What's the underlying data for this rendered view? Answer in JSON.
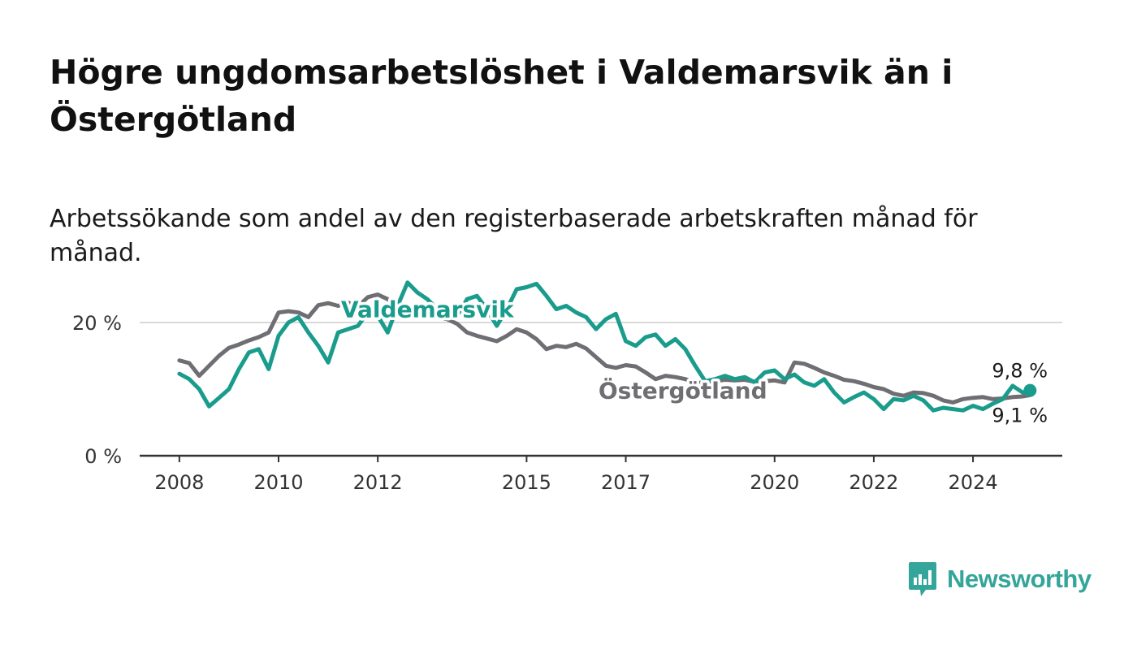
{
  "title": "Högre ungdomsarbetslöshet i Valdemarsvik än i Östergötland",
  "subtitle": "Arbetssökande som andel av den registerbaserade arbetskraften månad för månad.",
  "brand": {
    "name": "Newsworthy",
    "color": "#34a59a",
    "icon": "bar-chart-speech-bubble-icon"
  },
  "chart_data": {
    "type": "line",
    "x_range": [
      2007.2,
      2025.8
    ],
    "ylim": [
      0,
      30
    ],
    "y_ticks": [
      0,
      20
    ],
    "y_tick_labels": [
      "0 %",
      "20 %"
    ],
    "x_ticks": [
      2008,
      2010,
      2012,
      2015,
      2017,
      2020,
      2022,
      2024
    ],
    "x_tick_labels": [
      "2008",
      "2010",
      "2012",
      "2015",
      "2017",
      "2020",
      "2022",
      "2024"
    ],
    "grid": "horizontal at 20 %",
    "series": [
      {
        "name": "Östergötland",
        "color": "#6e6e73",
        "end_label": "9,1 %",
        "points": [
          [
            2008.0,
            14.3
          ],
          [
            2008.2,
            13.9
          ],
          [
            2008.4,
            12.0
          ],
          [
            2008.6,
            13.5
          ],
          [
            2008.8,
            15.0
          ],
          [
            2009.0,
            16.2
          ],
          [
            2009.2,
            16.7
          ],
          [
            2009.4,
            17.3
          ],
          [
            2009.6,
            17.8
          ],
          [
            2009.8,
            18.5
          ],
          [
            2010.0,
            21.5
          ],
          [
            2010.2,
            21.7
          ],
          [
            2010.4,
            21.5
          ],
          [
            2010.6,
            20.8
          ],
          [
            2010.8,
            22.6
          ],
          [
            2011.0,
            22.9
          ],
          [
            2011.2,
            22.5
          ],
          [
            2011.4,
            23.0
          ],
          [
            2011.6,
            22.4
          ],
          [
            2011.8,
            23.8
          ],
          [
            2012.0,
            24.2
          ],
          [
            2012.2,
            23.5
          ],
          [
            2012.4,
            22.2
          ],
          [
            2012.6,
            21.6
          ],
          [
            2012.8,
            22.0
          ],
          [
            2013.0,
            21.5
          ],
          [
            2013.2,
            20.8
          ],
          [
            2013.4,
            20.5
          ],
          [
            2013.6,
            19.8
          ],
          [
            2013.8,
            18.5
          ],
          [
            2014.0,
            18.0
          ],
          [
            2014.2,
            17.6
          ],
          [
            2014.4,
            17.2
          ],
          [
            2014.6,
            18.0
          ],
          [
            2014.8,
            19.0
          ],
          [
            2015.0,
            18.5
          ],
          [
            2015.2,
            17.5
          ],
          [
            2015.4,
            16.0
          ],
          [
            2015.6,
            16.5
          ],
          [
            2015.8,
            16.3
          ],
          [
            2016.0,
            16.8
          ],
          [
            2016.2,
            16.1
          ],
          [
            2016.4,
            14.8
          ],
          [
            2016.6,
            13.5
          ],
          [
            2016.8,
            13.2
          ],
          [
            2017.0,
            13.6
          ],
          [
            2017.2,
            13.4
          ],
          [
            2017.4,
            12.5
          ],
          [
            2017.6,
            11.5
          ],
          [
            2017.8,
            12.0
          ],
          [
            2018.0,
            11.8
          ],
          [
            2018.2,
            11.5
          ],
          [
            2018.4,
            11.0
          ],
          [
            2018.6,
            10.9
          ],
          [
            2018.8,
            11.2
          ],
          [
            2019.0,
            11.4
          ],
          [
            2019.2,
            11.3
          ],
          [
            2019.4,
            11.4
          ],
          [
            2019.6,
            11.1
          ],
          [
            2019.8,
            11.2
          ],
          [
            2020.0,
            11.3
          ],
          [
            2020.2,
            11.0
          ],
          [
            2020.4,
            14.0
          ],
          [
            2020.6,
            13.8
          ],
          [
            2020.8,
            13.2
          ],
          [
            2021.0,
            12.5
          ],
          [
            2021.2,
            12.0
          ],
          [
            2021.4,
            11.4
          ],
          [
            2021.6,
            11.2
          ],
          [
            2021.8,
            10.8
          ],
          [
            2022.0,
            10.3
          ],
          [
            2022.2,
            10.0
          ],
          [
            2022.4,
            9.3
          ],
          [
            2022.6,
            9.0
          ],
          [
            2022.8,
            9.5
          ],
          [
            2023.0,
            9.4
          ],
          [
            2023.2,
            9.0
          ],
          [
            2023.4,
            8.3
          ],
          [
            2023.6,
            8.0
          ],
          [
            2023.8,
            8.5
          ],
          [
            2024.0,
            8.7
          ],
          [
            2024.2,
            8.8
          ],
          [
            2024.4,
            8.5
          ],
          [
            2024.6,
            8.6
          ],
          [
            2024.8,
            8.8
          ],
          [
            2025.0,
            8.9
          ],
          [
            2025.15,
            9.1
          ]
        ]
      },
      {
        "name": "Valdemarsvik",
        "color": "#1a9c8c",
        "end_label": "9,8 %",
        "points": [
          [
            2008.0,
            12.3
          ],
          [
            2008.2,
            11.5
          ],
          [
            2008.4,
            10.0
          ],
          [
            2008.6,
            7.4
          ],
          [
            2008.8,
            8.7
          ],
          [
            2009.0,
            10.0
          ],
          [
            2009.2,
            13.0
          ],
          [
            2009.4,
            15.5
          ],
          [
            2009.6,
            16.0
          ],
          [
            2009.8,
            13.0
          ],
          [
            2010.0,
            18.0
          ],
          [
            2010.2,
            20.0
          ],
          [
            2010.4,
            20.8
          ],
          [
            2010.6,
            18.5
          ],
          [
            2010.8,
            16.5
          ],
          [
            2011.0,
            14.0
          ],
          [
            2011.2,
            18.5
          ],
          [
            2011.4,
            19.0
          ],
          [
            2011.6,
            19.5
          ],
          [
            2011.8,
            21.5
          ],
          [
            2012.0,
            21.0
          ],
          [
            2012.2,
            18.5
          ],
          [
            2012.4,
            22.5
          ],
          [
            2012.6,
            26.0
          ],
          [
            2012.8,
            24.5
          ],
          [
            2013.0,
            23.5
          ],
          [
            2013.2,
            22.0
          ],
          [
            2013.4,
            21.5
          ],
          [
            2013.6,
            21.0
          ],
          [
            2013.8,
            23.5
          ],
          [
            2014.0,
            24.0
          ],
          [
            2014.2,
            22.0
          ],
          [
            2014.4,
            19.5
          ],
          [
            2014.6,
            22.0
          ],
          [
            2014.8,
            25.0
          ],
          [
            2015.0,
            25.3
          ],
          [
            2015.2,
            25.8
          ],
          [
            2015.4,
            24.0
          ],
          [
            2015.6,
            22.0
          ],
          [
            2015.8,
            22.5
          ],
          [
            2016.0,
            21.5
          ],
          [
            2016.2,
            20.8
          ],
          [
            2016.4,
            19.0
          ],
          [
            2016.6,
            20.5
          ],
          [
            2016.8,
            21.3
          ],
          [
            2017.0,
            17.2
          ],
          [
            2017.2,
            16.5
          ],
          [
            2017.4,
            17.8
          ],
          [
            2017.6,
            18.2
          ],
          [
            2017.8,
            16.5
          ],
          [
            2018.0,
            17.5
          ],
          [
            2018.2,
            16.0
          ],
          [
            2018.4,
            13.5
          ],
          [
            2018.6,
            11.2
          ],
          [
            2018.8,
            11.5
          ],
          [
            2019.0,
            12.0
          ],
          [
            2019.2,
            11.5
          ],
          [
            2019.4,
            11.8
          ],
          [
            2019.6,
            11.0
          ],
          [
            2019.8,
            12.5
          ],
          [
            2020.0,
            12.8
          ],
          [
            2020.2,
            11.5
          ],
          [
            2020.4,
            12.2
          ],
          [
            2020.6,
            11.0
          ],
          [
            2020.8,
            10.5
          ],
          [
            2021.0,
            11.5
          ],
          [
            2021.2,
            9.5
          ],
          [
            2021.4,
            8.0
          ],
          [
            2021.6,
            8.8
          ],
          [
            2021.8,
            9.5
          ],
          [
            2022.0,
            8.5
          ],
          [
            2022.2,
            7.0
          ],
          [
            2022.4,
            8.5
          ],
          [
            2022.6,
            8.3
          ],
          [
            2022.8,
            9.0
          ],
          [
            2023.0,
            8.3
          ],
          [
            2023.2,
            6.8
          ],
          [
            2023.4,
            7.2
          ],
          [
            2023.6,
            7.0
          ],
          [
            2023.8,
            6.8
          ],
          [
            2024.0,
            7.5
          ],
          [
            2024.2,
            7.0
          ],
          [
            2024.4,
            7.8
          ],
          [
            2024.6,
            8.5
          ],
          [
            2024.8,
            10.5
          ],
          [
            2025.0,
            9.5
          ],
          [
            2025.15,
            9.8
          ]
        ]
      }
    ],
    "annotations": [
      {
        "series": "Valdemarsvik",
        "text": "Valdemarsvik",
        "x": 2013.0,
        "y": 20.8
      },
      {
        "series": "Östergötland",
        "text": "Östergötland",
        "x": 2018.15,
        "y": 8.6
      }
    ]
  }
}
